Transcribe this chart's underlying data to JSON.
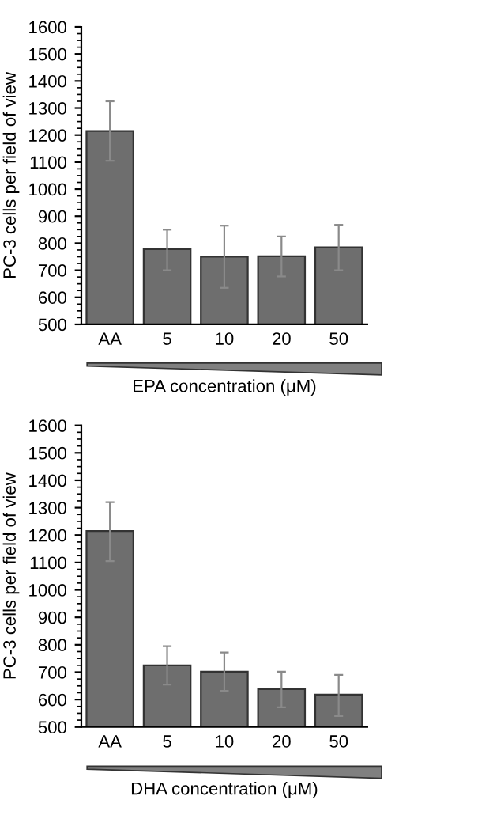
{
  "chart_data": [
    {
      "type": "bar",
      "xlabel": "EPA concentration (μM)",
      "ylabel": "PC-3 cells per field of view",
      "categories": [
        "AA",
        "5",
        "10",
        "20",
        "50"
      ],
      "color": "#6e6e6e",
      "values": [
        1215,
        778,
        750,
        752,
        785
      ],
      "errors": [
        [
          1105,
          1325
        ],
        [
          700,
          850
        ],
        [
          635,
          865
        ],
        [
          677,
          825
        ],
        [
          700,
          868
        ]
      ],
      "ylim": [
        500,
        1600
      ],
      "yticks": [
        500,
        600,
        700,
        800,
        900,
        1000,
        1100,
        1200,
        1300,
        1400,
        1500,
        1600
      ],
      "grid": false
    },
    {
      "type": "bar",
      "xlabel": "DHA concentration (μM)",
      "ylabel": "PC-3 cells per field of view",
      "categories": [
        "AA",
        "5",
        "10",
        "20",
        "50"
      ],
      "color": "#6e6e6e",
      "values": [
        1215,
        725,
        702,
        638,
        618
      ],
      "errors": [
        [
          1105,
          1320
        ],
        [
          655,
          795
        ],
        [
          632,
          772
        ],
        [
          572,
          702
        ],
        [
          540,
          690
        ]
      ],
      "ylim": [
        500,
        1600
      ],
      "yticks": [
        500,
        600,
        700,
        800,
        900,
        1000,
        1100,
        1200,
        1300,
        1400,
        1500,
        1600
      ],
      "grid": false
    }
  ]
}
